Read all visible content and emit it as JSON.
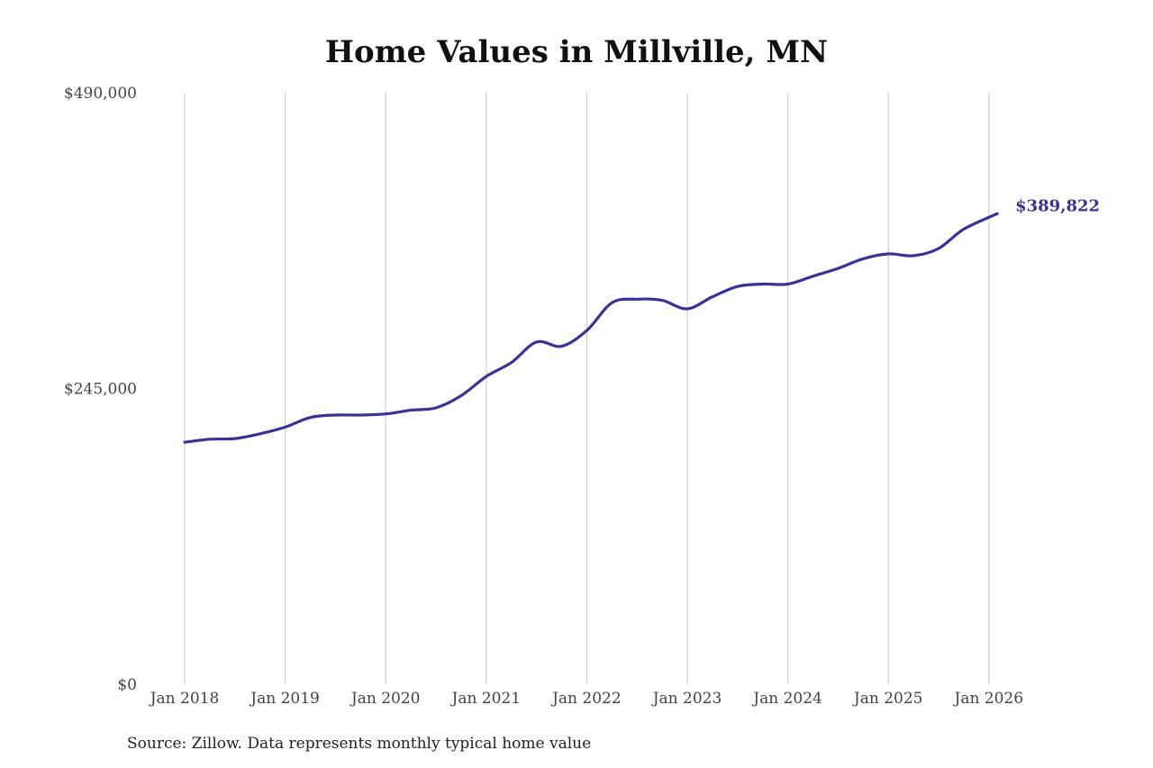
{
  "title": "Home Values in Millville, MN",
  "source": "Source: Zillow. Data represents monthly typical home value",
  "colors": {
    "line": "#3b3393",
    "grid": "#c8c8c8",
    "text": "#444444"
  },
  "chart_data": {
    "type": "line",
    "title": "Home Values in Millville, MN",
    "xlabel": "",
    "ylabel": "",
    "grid": "vertical",
    "ylim": [
      0,
      490000
    ],
    "yticks": [
      0,
      245000,
      490000
    ],
    "ytick_labels": [
      "$0",
      "$245,000",
      "$490,000"
    ],
    "xticks": [
      "2018-01",
      "2019-01",
      "2020-01",
      "2021-01",
      "2022-01",
      "2023-01",
      "2024-01",
      "2025-01",
      "2026-01"
    ],
    "xtick_labels": [
      "Jan 2018",
      "Jan 2019",
      "Jan 2020",
      "Jan 2021",
      "Jan 2022",
      "Jan 2023",
      "Jan 2024",
      "Jan 2025",
      "Jan 2026"
    ],
    "last_value_label": "$389,822",
    "series": [
      {
        "points": [
          [
            "2018-01",
            200500
          ],
          [
            "2018-04",
            203000
          ],
          [
            "2018-07",
            203500
          ],
          [
            "2018-10",
            207500
          ],
          [
            "2019-01",
            213000
          ],
          [
            "2019-04",
            221000
          ],
          [
            "2019-07",
            223000
          ],
          [
            "2019-10",
            223000
          ],
          [
            "2020-01",
            224000
          ],
          [
            "2020-04",
            227000
          ],
          [
            "2020-07",
            229000
          ],
          [
            "2020-10",
            239000
          ],
          [
            "2021-01",
            255000
          ],
          [
            "2021-04",
            266500
          ],
          [
            "2021-07",
            283500
          ],
          [
            "2021-10",
            280000
          ],
          [
            "2022-01",
            293000
          ],
          [
            "2022-04",
            316000
          ],
          [
            "2022-07",
            319000
          ],
          [
            "2022-10",
            318000
          ],
          [
            "2023-01",
            311000
          ],
          [
            "2023-04",
            321000
          ],
          [
            "2023-07",
            329500
          ],
          [
            "2023-10",
            331500
          ],
          [
            "2024-01",
            331500
          ],
          [
            "2024-04",
            338000
          ],
          [
            "2024-07",
            344500
          ],
          [
            "2024-10",
            352500
          ],
          [
            "2025-01",
            356500
          ],
          [
            "2025-04",
            355000
          ],
          [
            "2025-07",
            361000
          ],
          [
            "2025-10",
            377000
          ],
          [
            "2026-02",
            389822
          ]
        ]
      }
    ]
  }
}
